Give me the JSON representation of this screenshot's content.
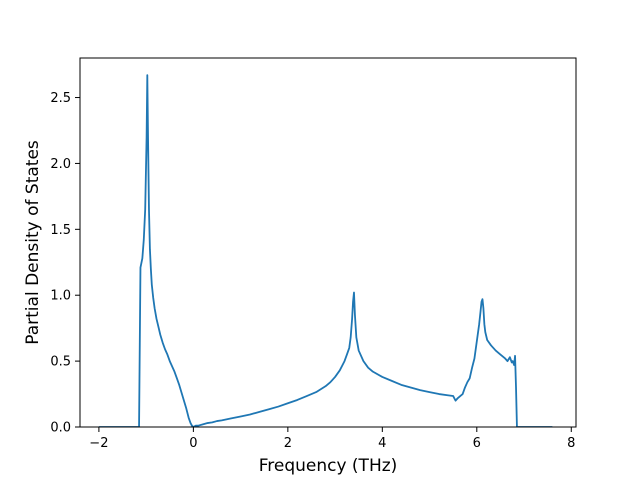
{
  "chart_data": {
    "type": "line",
    "title": "",
    "xlabel": "Frequency (THz)",
    "ylabel": "Partial Density of States",
    "xlim": [
      -2.4,
      8.1
    ],
    "ylim": [
      0.0,
      2.8
    ],
    "grid": false,
    "x_ticks": [
      -2,
      0,
      2,
      4,
      6,
      8
    ],
    "x_tick_labels": [
      "−2",
      "0",
      "2",
      "4",
      "6",
      "8"
    ],
    "y_ticks": [
      0.0,
      0.5,
      1.0,
      1.5,
      2.0,
      2.5
    ],
    "y_tick_labels": [
      "0.0",
      "0.5",
      "1.0",
      "1.5",
      "2.0",
      "2.5"
    ],
    "series": [
      {
        "color": "#1f77b4",
        "x": [
          -2.0,
          -1.5,
          -1.18,
          -1.15,
          -1.12,
          -1.08,
          -1.05,
          -1.02,
          -0.99,
          -0.975,
          -0.96,
          -0.94,
          -0.92,
          -0.9,
          -0.88,
          -0.85,
          -0.82,
          -0.78,
          -0.74,
          -0.7,
          -0.65,
          -0.6,
          -0.55,
          -0.5,
          -0.45,
          -0.4,
          -0.35,
          -0.3,
          -0.25,
          -0.2,
          -0.15,
          -0.1,
          -0.06,
          -0.03,
          0.0,
          0.05,
          0.1,
          0.2,
          0.3,
          0.4,
          0.5,
          0.6,
          0.8,
          1.0,
          1.2,
          1.4,
          1.6,
          1.8,
          2.0,
          2.2,
          2.4,
          2.6,
          2.8,
          2.9,
          3.0,
          3.1,
          3.2,
          3.25,
          3.3,
          3.33,
          3.36,
          3.38,
          3.4,
          3.42,
          3.45,
          3.5,
          3.6,
          3.7,
          3.8,
          4.0,
          4.2,
          4.4,
          4.6,
          4.8,
          5.0,
          5.2,
          5.4,
          5.5,
          5.55,
          5.6,
          5.65,
          5.7,
          5.75,
          5.8,
          5.85,
          5.9,
          5.95,
          6.0,
          6.05,
          6.08,
          6.1,
          6.12,
          6.14,
          6.16,
          6.18,
          6.22,
          6.3,
          6.4,
          6.5,
          6.6,
          6.65,
          6.7,
          6.74,
          6.76,
          6.79,
          6.81,
          6.83,
          6.85,
          6.87,
          6.9,
          7.0,
          7.3,
          7.6
        ],
        "y": [
          0.0,
          0.0,
          0.0,
          0.0,
          1.21,
          1.28,
          1.42,
          1.65,
          2.2,
          2.67,
          2.2,
          1.65,
          1.35,
          1.2,
          1.08,
          0.98,
          0.9,
          0.82,
          0.76,
          0.7,
          0.64,
          0.59,
          0.55,
          0.5,
          0.46,
          0.42,
          0.37,
          0.32,
          0.26,
          0.2,
          0.14,
          0.07,
          0.03,
          0.01,
          0.0,
          0.01,
          0.01,
          0.02,
          0.03,
          0.035,
          0.045,
          0.05,
          0.065,
          0.08,
          0.095,
          0.115,
          0.135,
          0.155,
          0.18,
          0.205,
          0.235,
          0.265,
          0.31,
          0.34,
          0.38,
          0.43,
          0.5,
          0.55,
          0.6,
          0.68,
          0.82,
          0.95,
          1.02,
          0.85,
          0.68,
          0.58,
          0.5,
          0.45,
          0.42,
          0.38,
          0.35,
          0.32,
          0.3,
          0.28,
          0.265,
          0.25,
          0.24,
          0.235,
          0.2,
          0.22,
          0.235,
          0.25,
          0.3,
          0.34,
          0.37,
          0.45,
          0.52,
          0.65,
          0.78,
          0.88,
          0.95,
          0.97,
          0.9,
          0.78,
          0.72,
          0.66,
          0.62,
          0.58,
          0.55,
          0.52,
          0.5,
          0.53,
          0.49,
          0.5,
          0.47,
          0.54,
          0.3,
          0.0,
          0.0,
          0.0,
          0.0,
          0.0,
          0.0
        ]
      }
    ]
  }
}
